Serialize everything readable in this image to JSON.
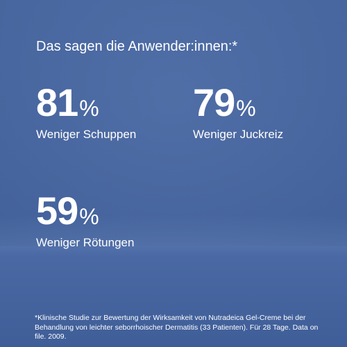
{
  "header": {
    "title": "Das sagen die Anwender:innen:*"
  },
  "stats": [
    {
      "value": 81,
      "unit": "%",
      "label": "Weniger Schuppen"
    },
    {
      "value": 79,
      "unit": "%",
      "label": "Weniger Juckreiz"
    },
    {
      "value": 59,
      "unit": "%",
      "label": "Weniger Rötungen"
    }
  ],
  "footnote": "*Klinische Studie zur Bewertung der Wirksamkeit von Nutradeica Gel-Creme bei der Behandlung von leichter seborrhoischer Dermatitis (33 Patienten). Für 28 Tage. Data on file. 2009."
}
